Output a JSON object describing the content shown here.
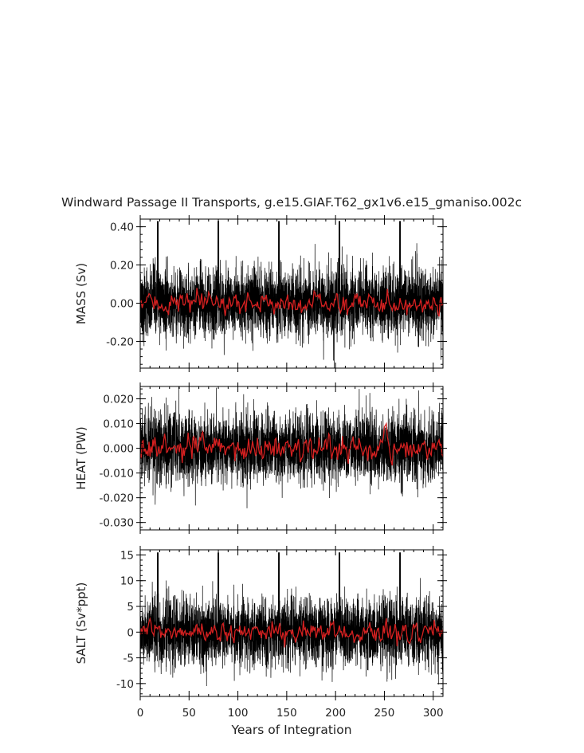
{
  "chart_data": [
    {
      "type": "line",
      "title": "Windward Passage II Transports, g.e15.GIAF.T62_gx1v6.e15_gmaniso.002c",
      "ylabel": "MASS (Sv)",
      "xlim": [
        0,
        310
      ],
      "ylim": [
        -0.34,
        0.44
      ],
      "yticks": [
        0.4,
        0.2,
        0.0,
        -0.2
      ],
      "ytick_labels": [
        "0.40",
        "0.20",
        "0.00",
        "-0.20"
      ],
      "series": [
        {
          "color": "#000000",
          "resolution": "monthly",
          "amplitude": 0.09,
          "spike_years": [
            18,
            80,
            142,
            204,
            266
          ],
          "spike_value": 0.43
        },
        {
          "color": "#d42020",
          "resolution": "annual",
          "amplitude": 0.025,
          "mean": 0.0
        }
      ]
    },
    {
      "type": "line",
      "ylabel": "HEAT (PW)",
      "xlim": [
        0,
        310
      ],
      "ylim": [
        -0.033,
        0.025
      ],
      "yticks": [
        0.02,
        0.01,
        0.0,
        -0.01,
        -0.02,
        -0.03
      ],
      "ytick_labels": [
        "0.020",
        "0.010",
        "0.000",
        "-0.010",
        "-0.020",
        "-0.030"
      ],
      "series": [
        {
          "color": "#000000",
          "resolution": "monthly",
          "amplitude": 0.007
        },
        {
          "color": "#d42020",
          "resolution": "annual",
          "amplitude": 0.0022,
          "mean": 0.0
        }
      ]
    },
    {
      "type": "line",
      "ylabel": "SALT (Sv*ppt)",
      "xlabel": "Years of Integration",
      "xlim": [
        0,
        310
      ],
      "ylim": [
        -12.5,
        16
      ],
      "xticks": [
        0,
        50,
        100,
        150,
        200,
        250,
        300
      ],
      "xtick_labels": [
        "0",
        "50",
        "100",
        "150",
        "200",
        "250",
        "300"
      ],
      "yticks": [
        15,
        10,
        5,
        0,
        -5,
        -10
      ],
      "ytick_labels": [
        "15",
        "10",
        "5",
        "0",
        "-5",
        "-10"
      ],
      "series": [
        {
          "color": "#000000",
          "resolution": "monthly",
          "amplitude": 3.2,
          "spike_years": [
            18,
            80,
            142,
            204,
            266
          ],
          "spike_value": 15.5
        },
        {
          "color": "#d42020",
          "resolution": "annual",
          "amplitude": 0.9,
          "mean": 0.0
        }
      ]
    }
  ]
}
